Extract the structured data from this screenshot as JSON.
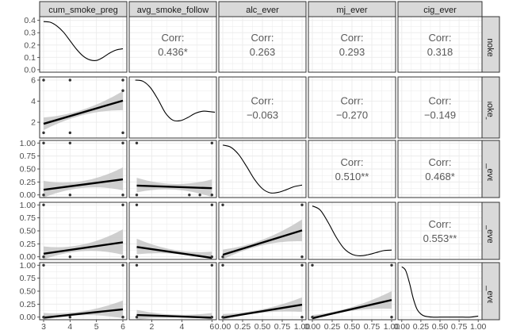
{
  "chart_data": {
    "type": "scatter-matrix",
    "title": "",
    "variables": [
      "cum_smoke_preg",
      "avg_smoke_follow",
      "alc_ever",
      "mj_ever",
      "cig_ever"
    ],
    "strip_labels": {
      "columns": [
        "cum_smoke_preg",
        "avg_smoke_follow",
        "alc_ever",
        "mj_ever",
        "cig_ever"
      ],
      "rows": [
        "m_smoke_pr",
        "g_smoke_foll",
        "alc_ever",
        "mj_ever",
        "cig_ever"
      ]
    },
    "grid": true,
    "correlations": [
      {
        "row": 0,
        "col": 1,
        "label": "Corr:",
        "value": "0.436*"
      },
      {
        "row": 0,
        "col": 2,
        "label": "Corr:",
        "value": "0.263"
      },
      {
        "row": 0,
        "col": 3,
        "label": "Corr:",
        "value": "0.293"
      },
      {
        "row": 0,
        "col": 4,
        "label": "Corr:",
        "value": "0.318"
      },
      {
        "row": 1,
        "col": 2,
        "label": "Corr:",
        "value": "-0.063"
      },
      {
        "row": 1,
        "col": 3,
        "label": "Corr:",
        "value": "-0.270"
      },
      {
        "row": 1,
        "col": 4,
        "label": "Corr:",
        "value": "-0.149"
      },
      {
        "row": 2,
        "col": 3,
        "label": "Corr:",
        "value": "0.510**"
      },
      {
        "row": 2,
        "col": 4,
        "label": "Corr:",
        "value": "0.468*"
      },
      {
        "row": 3,
        "col": 4,
        "label": "Corr:",
        "value": "0.553**"
      }
    ],
    "x_axes": [
      {
        "range": [
          2.85,
          6.15
        ],
        "ticks": [
          3,
          4,
          5,
          6
        ],
        "tick_labels": [
          "3",
          "4",
          "5",
          "6"
        ]
      },
      {
        "range": [
          0.5,
          6.3
        ],
        "ticks": [
          2,
          4,
          6
        ],
        "tick_labels": [
          "2",
          "4",
          "6"
        ]
      },
      {
        "range": [
          -0.05,
          1.05
        ],
        "ticks": [
          0,
          0.25,
          0.5,
          0.75,
          1
        ],
        "tick_labels": [
          "0.00",
          "0.25",
          "0.50",
          "0.75",
          "1.00"
        ]
      },
      {
        "range": [
          -0.05,
          1.05
        ],
        "ticks": [
          0,
          0.25,
          0.5,
          0.75,
          1
        ],
        "tick_labels": [
          "0.00",
          "0.25",
          "0.50",
          "0.75",
          "1.00"
        ]
      },
      {
        "range": [
          -0.05,
          1.05
        ],
        "ticks": [
          0,
          0.25,
          0.5,
          0.75,
          1
        ],
        "tick_labels": [
          "0.00",
          "0.25",
          "0.50",
          "0.75",
          "1.00"
        ]
      }
    ],
    "y_axes": [
      {
        "range": [
          -0.02,
          0.43
        ],
        "ticks": [
          0.0,
          0.1,
          0.2,
          0.3,
          0.4
        ],
        "tick_labels": [
          "0.0",
          "0.1",
          "0.2",
          "0.3",
          "0.4"
        ]
      },
      {
        "range": [
          0.5,
          6.3
        ],
        "ticks": [
          2,
          4,
          6
        ],
        "tick_labels": [
          "2",
          "4",
          "6"
        ]
      },
      {
        "range": [
          -0.05,
          1.05
        ],
        "ticks": [
          0,
          0.25,
          0.5,
          0.75,
          1
        ],
        "tick_labels": [
          "0.00",
          "0.25",
          "0.50",
          "0.75",
          "1.00"
        ]
      },
      {
        "range": [
          -0.05,
          1.05
        ],
        "ticks": [
          0,
          0.25,
          0.5,
          0.75,
          1
        ],
        "tick_labels": [
          "0.00",
          "0.25",
          "0.50",
          "0.75",
          "1.00"
        ]
      },
      {
        "range": [
          -0.05,
          1.05
        ],
        "ticks": [
          0,
          0.25,
          0.5,
          0.75,
          1
        ],
        "tick_labels": [
          "0.00",
          "0.25",
          "0.50",
          "0.75",
          "1.00"
        ]
      }
    ],
    "densities": [
      {
        "var": 0,
        "x": [
          3.0,
          3.25,
          3.5,
          3.75,
          4.0,
          4.25,
          4.5,
          4.75,
          5.0,
          5.25,
          5.5,
          5.75,
          6.0
        ],
        "y": [
          0.39,
          0.385,
          0.355,
          0.305,
          0.235,
          0.165,
          0.11,
          0.08,
          0.075,
          0.1,
          0.135,
          0.16,
          0.17
        ]
      },
      {
        "var": 1,
        "x": [
          0.9,
          1.4,
          1.9,
          2.4,
          2.9,
          3.4,
          3.9,
          4.4,
          4.9,
          5.4,
          5.9,
          6.2
        ],
        "y": [
          6.0,
          5.9,
          5.3,
          4.2,
          2.9,
          2.2,
          2.15,
          2.45,
          2.85,
          3.05,
          3.0,
          2.95
        ]
      },
      {
        "var": 2,
        "x": [
          0.0,
          0.1,
          0.2,
          0.3,
          0.4,
          0.5,
          0.6,
          0.7,
          0.8,
          0.9,
          1.0
        ],
        "y": [
          0.96,
          0.92,
          0.78,
          0.55,
          0.3,
          0.12,
          0.04,
          0.05,
          0.1,
          0.16,
          0.19
        ]
      },
      {
        "var": 3,
        "x": [
          0.0,
          0.1,
          0.2,
          0.3,
          0.4,
          0.5,
          0.6,
          0.7,
          0.8,
          0.9,
          1.0
        ],
        "y": [
          0.98,
          0.9,
          0.66,
          0.38,
          0.16,
          0.05,
          0.02,
          0.04,
          0.08,
          0.12,
          0.13
        ]
      },
      {
        "var": 4,
        "x": [
          0.0,
          0.05,
          0.1,
          0.15,
          0.2,
          0.25,
          0.3,
          0.4,
          0.5,
          0.6,
          0.7,
          0.8,
          0.9,
          1.0
        ],
        "y": [
          0.97,
          0.9,
          0.66,
          0.36,
          0.15,
          0.06,
          0.02,
          0.0,
          0.0,
          0.0,
          0.0,
          0.0,
          0.0,
          0.02
        ]
      }
    ],
    "scatter_panels": [
      {
        "row": 1,
        "col": 0,
        "points": [
          [
            3,
            6
          ],
          [
            4,
            6
          ],
          [
            6,
            6
          ],
          [
            6,
            5
          ],
          [
            3,
            1
          ],
          [
            4,
            1
          ],
          [
            6,
            1
          ]
        ],
        "fit": [
          1.85,
          4.05
        ],
        "band_at_ends": [
          [
            1.25,
            2.45
          ],
          [
            3.15,
            4.95
          ]
        ]
      },
      {
        "row": 2,
        "col": 0,
        "points": [
          [
            3,
            1
          ],
          [
            4,
            1
          ],
          [
            6,
            1
          ],
          [
            3,
            0
          ],
          [
            4,
            0
          ],
          [
            6,
            0
          ]
        ],
        "fit": [
          0.1,
          0.3
        ],
        "band_at_ends": [
          [
            -0.05,
            0.27
          ],
          [
            0.09,
            0.53
          ]
        ]
      },
      {
        "row": 2,
        "col": 1,
        "points": [
          [
            1,
            1
          ],
          [
            6,
            1
          ],
          [
            1,
            0
          ],
          [
            4.5,
            0
          ],
          [
            5.2,
            0
          ],
          [
            6,
            0
          ]
        ],
        "fit": [
          0.18,
          0.13
        ],
        "band_at_ends": [
          [
            0.05,
            0.33
          ],
          [
            -0.04,
            0.3
          ]
        ]
      },
      {
        "row": 3,
        "col": 0,
        "points": [
          [
            3,
            1
          ],
          [
            6,
            1
          ],
          [
            3,
            0
          ],
          [
            4,
            0
          ],
          [
            6,
            0
          ]
        ],
        "fit": [
          0.06,
          0.28
        ],
        "band_at_ends": [
          [
            -0.06,
            0.2
          ],
          [
            0.04,
            0.53
          ]
        ]
      },
      {
        "row": 3,
        "col": 1,
        "points": [
          [
            1,
            1
          ],
          [
            6,
            1
          ],
          [
            1,
            0
          ],
          [
            6,
            0
          ]
        ],
        "fit": [
          0.19,
          -0.02
        ],
        "band_at_ends": [
          [
            0.05,
            0.35
          ],
          [
            -0.12,
            0.1
          ]
        ]
      },
      {
        "row": 3,
        "col": 2,
        "points": [
          [
            0,
            1
          ],
          [
            1,
            1
          ],
          [
            0,
            0
          ],
          [
            1,
            0
          ]
        ],
        "fit": [
          0.04,
          0.51
        ],
        "band_at_ends": [
          [
            -0.06,
            0.14
          ],
          [
            0.3,
            0.72
          ]
        ]
      },
      {
        "row": 4,
        "col": 0,
        "points": [
          [
            3,
            1
          ],
          [
            6,
            1
          ],
          [
            3,
            0
          ],
          [
            4,
            0
          ],
          [
            6,
            0
          ]
        ],
        "fit": [
          -0.01,
          0.15
        ],
        "band_at_ends": [
          [
            -0.1,
            0.08
          ],
          [
            -0.02,
            0.32
          ]
        ]
      },
      {
        "row": 4,
        "col": 1,
        "points": [
          [
            1,
            1
          ],
          [
            6,
            1
          ],
          [
            1,
            0
          ],
          [
            6,
            0
          ]
        ],
        "fit": [
          0.04,
          -0.01
        ],
        "band_at_ends": [
          [
            -0.06,
            0.14
          ],
          [
            -0.1,
            0.08
          ]
        ]
      },
      {
        "row": 4,
        "col": 2,
        "points": [
          [
            0,
            1
          ],
          [
            1,
            1
          ],
          [
            0,
            0
          ],
          [
            1,
            0
          ]
        ],
        "fit": [
          -0.01,
          0.24
        ],
        "band_at_ends": [
          [
            -0.08,
            0.06
          ],
          [
            0.1,
            0.38
          ]
        ]
      },
      {
        "row": 4,
        "col": 3,
        "points": [
          [
            0,
            1
          ],
          [
            1,
            1
          ],
          [
            0,
            0
          ],
          [
            1,
            0
          ]
        ],
        "fit": [
          -0.02,
          0.33
        ],
        "band_at_ends": [
          [
            -0.08,
            0.04
          ],
          [
            0.16,
            0.5
          ]
        ]
      }
    ]
  },
  "colors": {
    "panel_bg": "#ffffff",
    "grid": "#ebebeb",
    "panel_border": "#333333",
    "strip_bg": "#d9d9d9",
    "strip_text": "#1a1a1a",
    "corr_text": "#595959",
    "band": "#bfbfbf",
    "line": "#000000",
    "point": "#333333",
    "tick_text": "#4d4d4d"
  }
}
